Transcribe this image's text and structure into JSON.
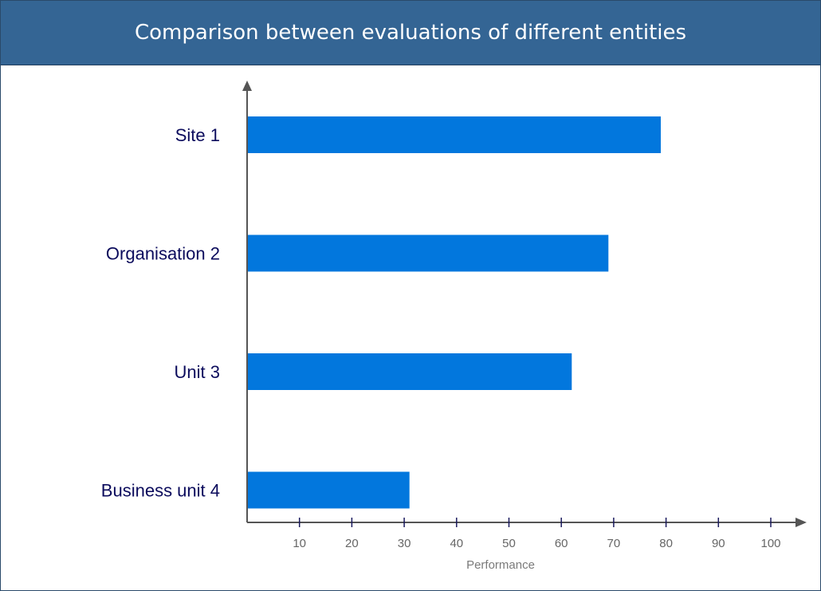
{
  "chart_data": {
    "type": "bar",
    "orientation": "horizontal",
    "title": "Comparison between evaluations of different entities",
    "xlabel": "Performance",
    "ylabel": "",
    "categories": [
      "Site 1",
      "Organisation 2",
      "Unit 3",
      "Business unit 4"
    ],
    "values": [
      79,
      69,
      62,
      31
    ],
    "xlim": [
      0,
      105
    ],
    "xticks": [
      10,
      20,
      30,
      40,
      50,
      60,
      70,
      80,
      90,
      100
    ],
    "bar_color": "#0277dd",
    "grid": false,
    "legend": "none"
  }
}
